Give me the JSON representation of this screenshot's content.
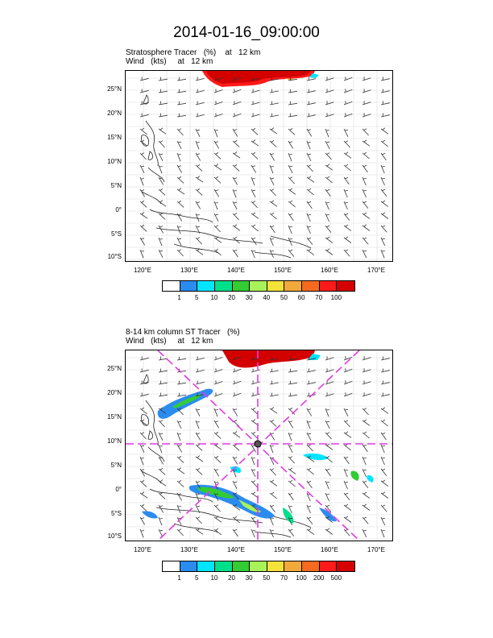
{
  "figure_title": "2014-01-16_09:00:00",
  "top_panel": {
    "subtitle_line1": "Stratosphere Tracer   (%)    at   12 km",
    "subtitle_line2": "Wind   (kts)     at   12 km",
    "colorbar_labels": [
      "1",
      "5",
      "10",
      "20",
      "30",
      "40",
      "50",
      "60",
      "70",
      "100"
    ],
    "colorbar_colors": [
      "#ffffff",
      "#2b8cf0",
      "#00e5ff",
      "#00e08a",
      "#33cc33",
      "#a8f25a",
      "#f5e23a",
      "#f2a93b",
      "#f56a1f",
      "#ff1a1a",
      "#d40000"
    ]
  },
  "bottom_panel": {
    "subtitle_line1": "8-14 km column ST Tracer   (%)",
    "subtitle_line2": "Wind   (kts)     at   12 km",
    "colorbar_labels": [
      "1",
      "5",
      "10",
      "20",
      "30",
      "50",
      "70",
      "100",
      "200",
      "500"
    ],
    "colorbar_colors": [
      "#ffffff",
      "#2b8cf0",
      "#00e5ff",
      "#00e08a",
      "#33cc33",
      "#a8f25a",
      "#f5e23a",
      "#f2a93b",
      "#f56a1f",
      "#ff1a1a",
      "#d40000"
    ]
  },
  "map_axes": {
    "lat_labels": [
      "25°N",
      "20°N",
      "15°N",
      "10°N",
      "5°N",
      "0°",
      "5°S",
      "10°S"
    ],
    "lon_labels": [
      "120°E",
      "130°E",
      "140°E",
      "150°E",
      "160°E",
      "170°E"
    ]
  },
  "crosshair_color": "#e23be2",
  "tracer_high_color": "#ff1a1a"
}
